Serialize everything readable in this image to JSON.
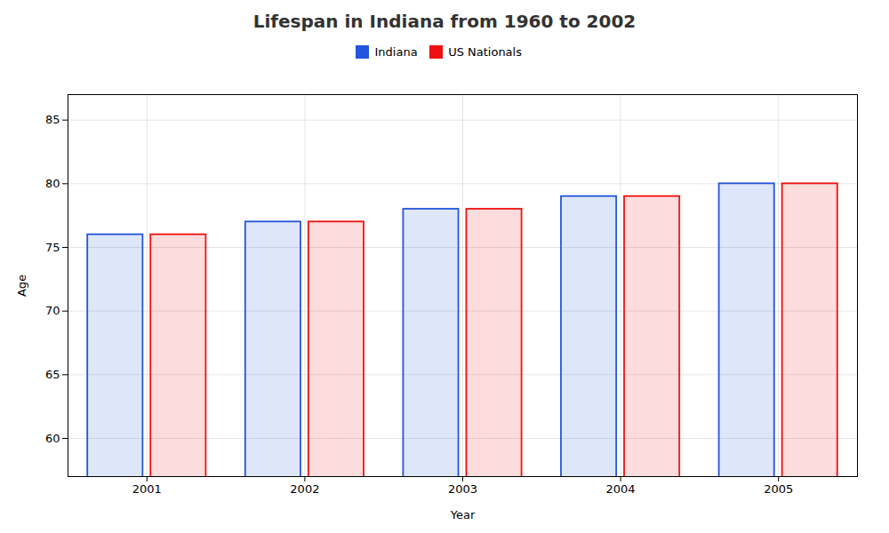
{
  "chart_data": {
    "type": "bar",
    "title": "Lifespan in Indiana from 1960 to 2002",
    "xlabel": "Year",
    "ylabel": "Age",
    "categories": [
      2001,
      2002,
      2003,
      2004,
      2005
    ],
    "series": [
      {
        "name": "Indiana",
        "color": "#2255dd",
        "values": [
          76.0,
          77.0,
          78.0,
          79.0,
          80.0
        ]
      },
      {
        "name": "US Nationals",
        "color": "#ee1111",
        "values": [
          76.0,
          77.0,
          78.0,
          79.0,
          80.0
        ]
      }
    ],
    "ylim": [
      57,
      87
    ],
    "yticks": [
      60,
      65,
      70,
      75,
      80,
      85
    ],
    "grid": true,
    "legend": "top"
  }
}
